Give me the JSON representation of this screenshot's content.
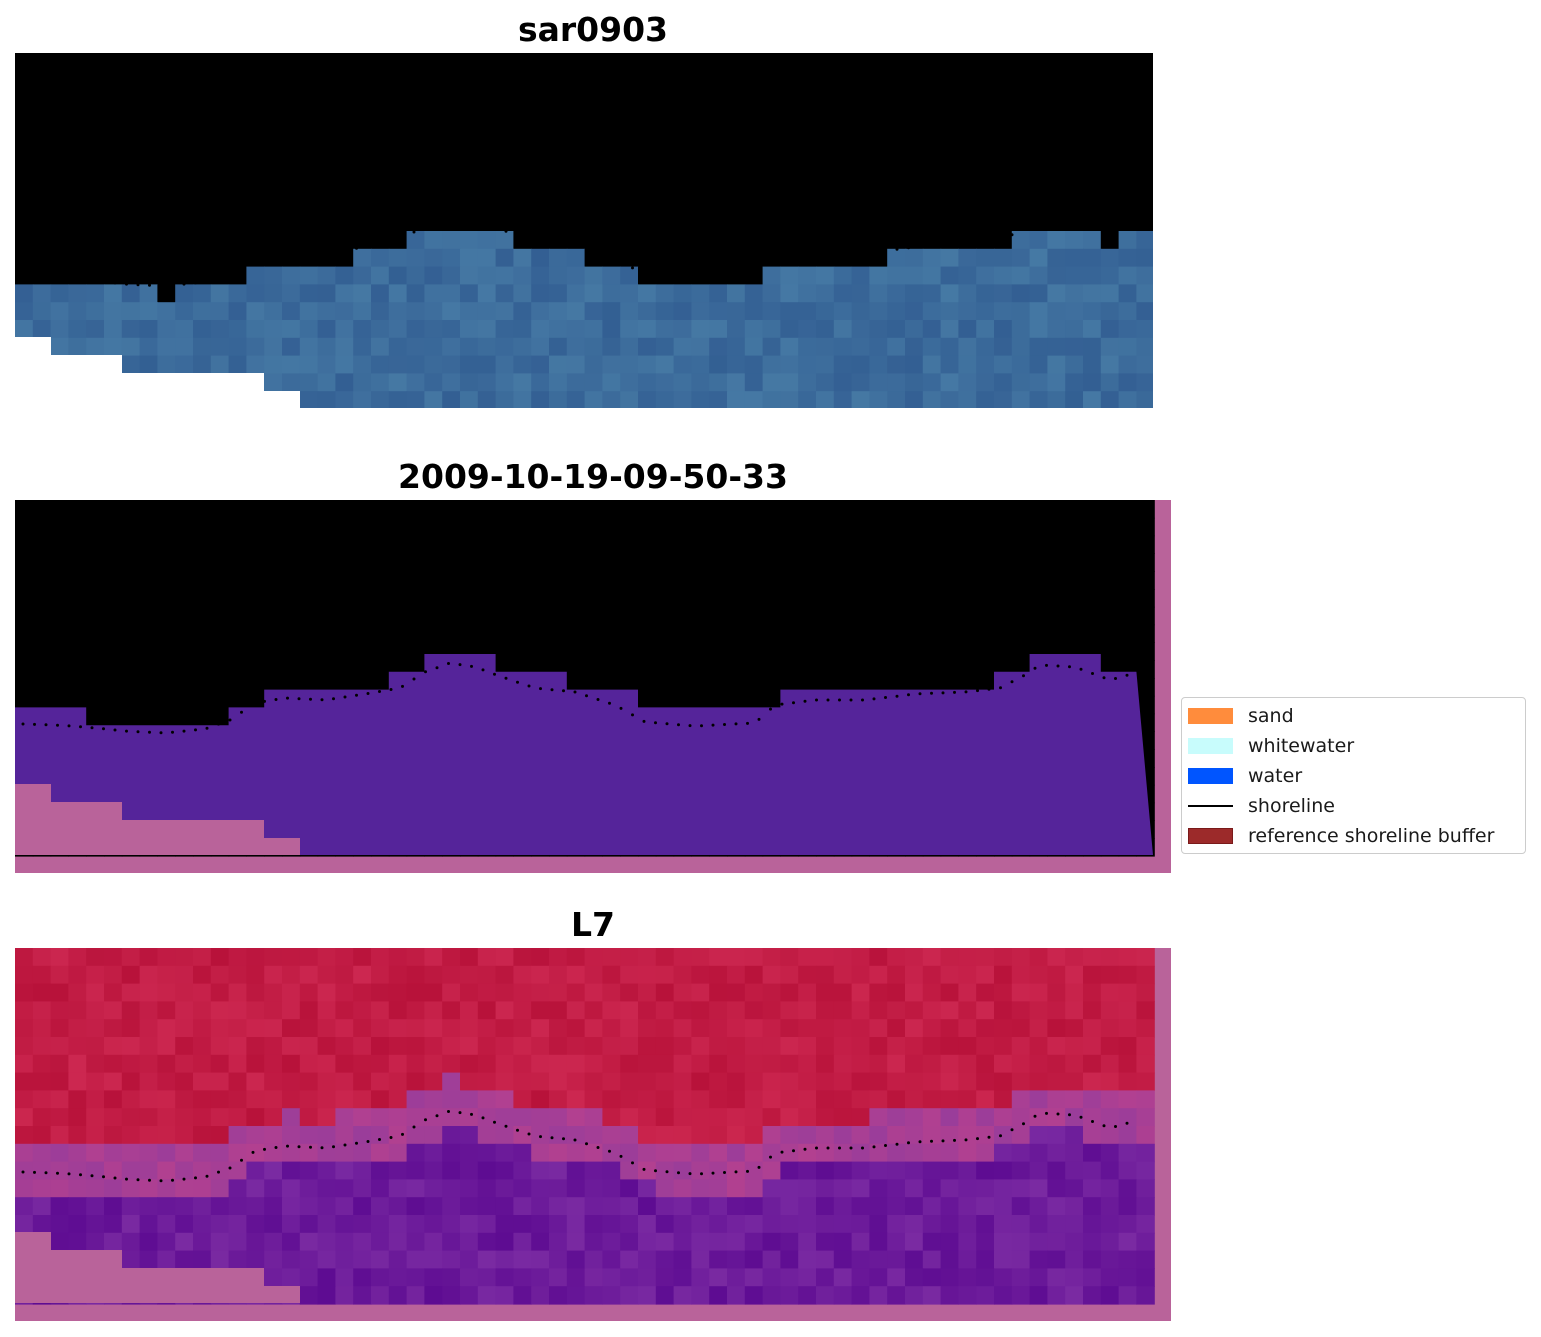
{
  "panels": [
    {
      "id": "rgb",
      "title": "sar0903"
    },
    {
      "id": "classified",
      "title": "2009-10-19-09-50-33"
    },
    {
      "id": "index",
      "title": "L7"
    }
  ],
  "legend": {
    "items": [
      {
        "label": "sand",
        "kind": "patch",
        "color": "#ff8c3c"
      },
      {
        "label": "whitewater",
        "kind": "patch",
        "color": "#c8fcfc"
      },
      {
        "label": "water",
        "kind": "patch",
        "color": "#0055ff"
      },
      {
        "label": "shoreline",
        "kind": "line",
        "color": "#000000"
      },
      {
        "label": "reference shoreline buffer",
        "kind": "patch",
        "color": "#9c2a2a"
      }
    ]
  },
  "colors": {
    "rgb_water": "#3a6b9a",
    "rgb_cloud": "#b8c8d8",
    "classified_land": "#9a4f8a",
    "classified_water": "#55249a",
    "classified_border": "#b9639a",
    "index_land": "#c0173e",
    "index_water": "#6a1398",
    "index_border": "#b9639a"
  }
}
